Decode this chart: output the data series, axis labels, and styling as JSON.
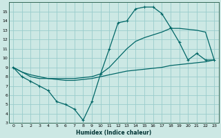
{
  "xlabel": "Humidex (Indice chaleur)",
  "background_color": "#cce8e4",
  "grid_color": "#99cccc",
  "line_color": "#006666",
  "xlim": [
    -0.5,
    23.5
  ],
  "ylim": [
    3,
    16
  ],
  "yticks": [
    3,
    4,
    5,
    6,
    7,
    8,
    9,
    10,
    11,
    12,
    13,
    14,
    15
  ],
  "xticks": [
    0,
    1,
    2,
    3,
    4,
    5,
    6,
    7,
    8,
    9,
    10,
    11,
    12,
    13,
    14,
    15,
    16,
    17,
    18,
    19,
    20,
    21,
    22,
    23
  ],
  "line1_x": [
    0,
    1,
    2,
    3,
    4,
    5,
    6,
    7,
    8,
    9,
    10,
    11,
    12,
    13,
    14,
    15,
    16,
    17,
    18,
    19,
    20,
    21,
    22,
    23
  ],
  "line1_y": [
    9,
    8,
    7.5,
    7,
    6.5,
    5.3,
    5.0,
    4.5,
    3.3,
    5.3,
    8.3,
    11.0,
    13.8,
    14.0,
    15.3,
    15.5,
    15.5,
    14.8,
    13.3,
    11.7,
    9.8,
    10.5,
    9.8,
    9.8
  ],
  "line2_x": [
    0,
    1,
    2,
    3,
    4,
    5,
    6,
    7,
    8,
    9,
    10,
    11,
    12,
    13,
    14,
    15,
    16,
    17,
    18,
    19,
    20,
    21,
    22,
    23
  ],
  "line2_y": [
    9,
    8.5,
    8.2,
    8.0,
    7.8,
    7.7,
    7.6,
    7.6,
    7.7,
    7.8,
    8.0,
    8.2,
    8.4,
    8.6,
    8.7,
    8.8,
    8.9,
    9.0,
    9.2,
    9.3,
    9.4,
    9.5,
    9.6,
    9.8
  ],
  "line3_x": [
    0,
    1,
    2,
    3,
    4,
    5,
    6,
    7,
    8,
    9,
    10,
    11,
    12,
    13,
    14,
    15,
    16,
    17,
    18,
    19,
    20,
    21,
    22,
    23
  ],
  "line3_y": [
    9,
    8.5,
    8.0,
    7.8,
    7.8,
    7.8,
    7.8,
    7.8,
    7.9,
    8.0,
    8.3,
    9.0,
    10.0,
    11.0,
    11.8,
    12.2,
    12.5,
    12.8,
    13.2,
    13.2,
    13.1,
    13.0,
    12.8,
    9.8
  ]
}
